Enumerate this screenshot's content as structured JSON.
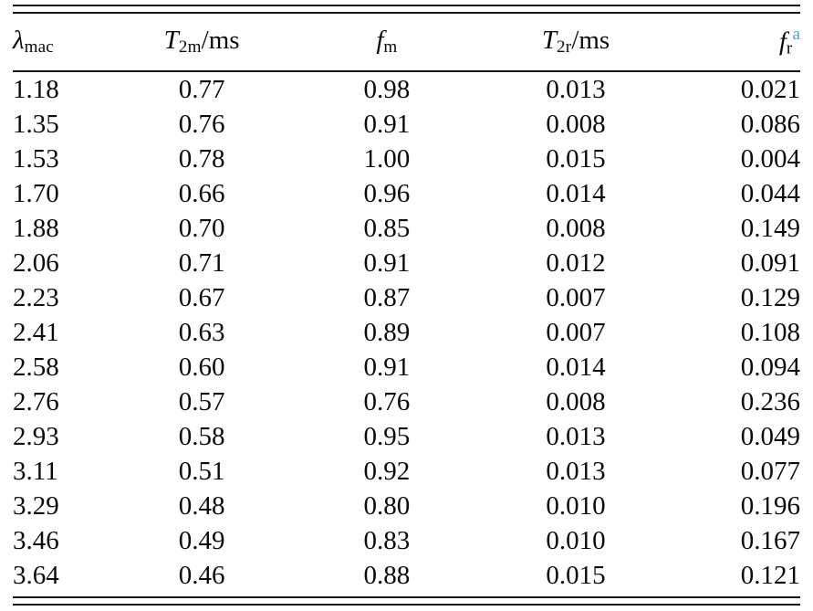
{
  "table": {
    "columns": [
      {
        "main": "λ",
        "sub": "mac",
        "suffix": "",
        "sup": ""
      },
      {
        "main": "T",
        "sub": "2m",
        "suffix": "/ms",
        "sup": ""
      },
      {
        "main": "f",
        "sub": "m",
        "suffix": "",
        "sup": ""
      },
      {
        "main": "T",
        "sub": "2r",
        "suffix": "/ms",
        "sup": ""
      },
      {
        "main": "f",
        "sub": "r",
        "suffix": "",
        "sup": "a"
      }
    ],
    "rows": [
      [
        "1.18",
        "0.77",
        "0.98",
        "0.013",
        "0.021"
      ],
      [
        "1.35",
        "0.76",
        "0.91",
        "0.008",
        "0.086"
      ],
      [
        "1.53",
        "0.78",
        "1.00",
        "0.015",
        "0.004"
      ],
      [
        "1.70",
        "0.66",
        "0.96",
        "0.014",
        "0.044"
      ],
      [
        "1.88",
        "0.70",
        "0.85",
        "0.008",
        "0.149"
      ],
      [
        "2.06",
        "0.71",
        "0.91",
        "0.012",
        "0.091"
      ],
      [
        "2.23",
        "0.67",
        "0.87",
        "0.007",
        "0.129"
      ],
      [
        "2.41",
        "0.63",
        "0.89",
        "0.007",
        "0.108"
      ],
      [
        "2.58",
        "0.60",
        "0.91",
        "0.014",
        "0.094"
      ],
      [
        "2.76",
        "0.57",
        "0.76",
        "0.008",
        "0.236"
      ],
      [
        "2.93",
        "0.58",
        "0.95",
        "0.013",
        "0.049"
      ],
      [
        "3.11",
        "0.51",
        "0.92",
        "0.013",
        "0.077"
      ],
      [
        "3.29",
        "0.48",
        "0.80",
        "0.010",
        "0.196"
      ],
      [
        "3.46",
        "0.49",
        "0.83",
        "0.010",
        "0.167"
      ],
      [
        "3.64",
        "0.46",
        "0.88",
        "0.015",
        "0.121"
      ]
    ]
  },
  "chart_data": {
    "type": "table",
    "title": "",
    "columns": [
      "λ_mac",
      "T_2m/ms",
      "f_m",
      "T_2r/ms",
      "f_r^a"
    ],
    "rows": [
      [
        1.18,
        0.77,
        0.98,
        0.013,
        0.021
      ],
      [
        1.35,
        0.76,
        0.91,
        0.008,
        0.086
      ],
      [
        1.53,
        0.78,
        1.0,
        0.015,
        0.004
      ],
      [
        1.7,
        0.66,
        0.96,
        0.014,
        0.044
      ],
      [
        1.88,
        0.7,
        0.85,
        0.008,
        0.149
      ],
      [
        2.06,
        0.71,
        0.91,
        0.012,
        0.091
      ],
      [
        2.23,
        0.67,
        0.87,
        0.007,
        0.129
      ],
      [
        2.41,
        0.63,
        0.89,
        0.007,
        0.108
      ],
      [
        2.58,
        0.6,
        0.91,
        0.014,
        0.094
      ],
      [
        2.76,
        0.57,
        0.76,
        0.008,
        0.236
      ],
      [
        2.93,
        0.58,
        0.95,
        0.013,
        0.049
      ],
      [
        3.11,
        0.51,
        0.92,
        0.013,
        0.077
      ],
      [
        3.29,
        0.48,
        0.8,
        0.01,
        0.196
      ],
      [
        3.46,
        0.49,
        0.83,
        0.01,
        0.167
      ],
      [
        3.64,
        0.46,
        0.88,
        0.015,
        0.121
      ]
    ]
  },
  "colors": {
    "text": "#0b0b0b",
    "rule": "#151515",
    "superscript_note": "#4aa2d9"
  }
}
